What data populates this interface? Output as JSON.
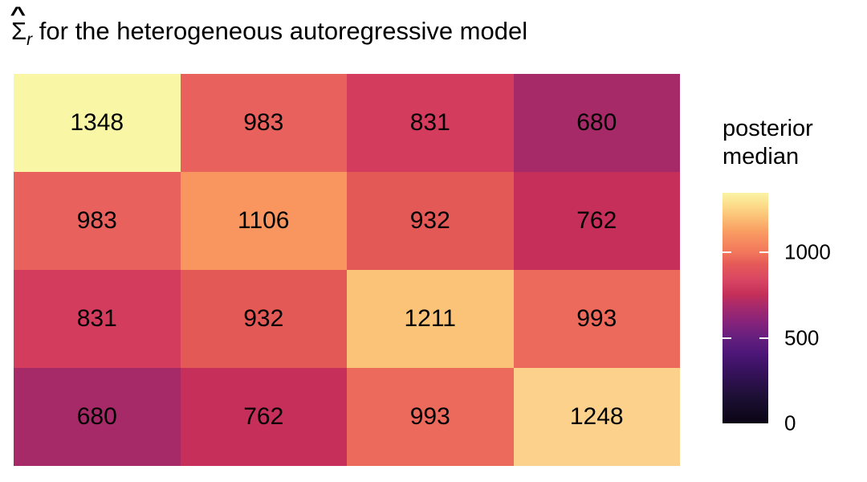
{
  "background": "#FFFFFF",
  "title": {
    "sigma": "Σ",
    "hat": "^",
    "subscript": "r",
    "rest": " for the heterogeneous autoregressive model"
  },
  "chart_data": {
    "type": "heatmap",
    "title": "Σ̂ᵣ for the heterogeneous autoregressive model",
    "rows": 4,
    "cols": 4,
    "values": [
      [
        1348,
        983,
        831,
        680
      ],
      [
        983,
        1106,
        932,
        762
      ],
      [
        831,
        932,
        1211,
        993
      ],
      [
        680,
        762,
        993,
        1248
      ]
    ],
    "cell_colors": [
      [
        "#F9F7A6",
        "#E9615C",
        "#D43C5D",
        "#A62A68"
      ],
      [
        "#E9615C",
        "#F9965F",
        "#E35956",
        "#C52F59"
      ],
      [
        "#D43C5D",
        "#E35956",
        "#FBC377",
        "#EC6A5B"
      ],
      [
        "#A62A68",
        "#C52F59",
        "#EC6A5B",
        "#FCD18C"
      ]
    ],
    "colormap": "magma",
    "grid": false,
    "axis_labels_shown": false,
    "legend": {
      "position": "right",
      "title_lines": [
        "posterior",
        "median"
      ],
      "domain": [
        0,
        1348
      ],
      "ticks": [
        {
          "label": "1000",
          "value": 1000
        },
        {
          "label": "500",
          "value": 500
        },
        {
          "label": "0",
          "value": 0
        }
      ],
      "gradient_stops": [
        {
          "pos": 0,
          "color": "#FAF3A4"
        },
        {
          "pos": 3,
          "color": "#FBE795"
        },
        {
          "pos": 7,
          "color": "#FCD384"
        },
        {
          "pos": 10,
          "color": "#FBC377"
        },
        {
          "pos": 17,
          "color": "#F99B62"
        },
        {
          "pos": 26,
          "color": "#F2765B"
        },
        {
          "pos": 31,
          "color": "#E55A58"
        },
        {
          "pos": 38,
          "color": "#D84563"
        },
        {
          "pos": 44,
          "color": "#C52F59"
        },
        {
          "pos": 49,
          "color": "#A72A6B"
        },
        {
          "pos": 56,
          "color": "#87237A"
        },
        {
          "pos": 63,
          "color": "#641F7E"
        },
        {
          "pos": 70,
          "color": "#4C1677"
        },
        {
          "pos": 76,
          "color": "#3A1262"
        },
        {
          "pos": 89,
          "color": "#1C0F33"
        },
        {
          "pos": 100,
          "color": "#0A0514"
        }
      ]
    }
  }
}
